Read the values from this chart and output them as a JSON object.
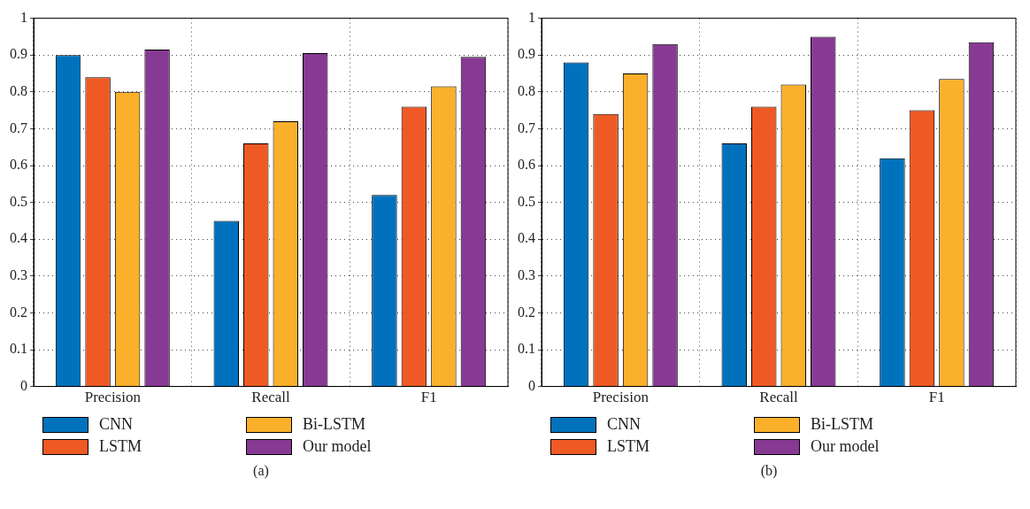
{
  "chart_data": [
    {
      "type": "bar",
      "categories": [
        "Precision",
        "Recall",
        "F1"
      ],
      "series": [
        {
          "name": "CNN",
          "color": "#0072bd",
          "values": [
            0.9,
            0.45,
            0.52
          ]
        },
        {
          "name": "LSTM",
          "color": "#ef5a24",
          "values": [
            0.84,
            0.66,
            0.76
          ]
        },
        {
          "name": "Bi-LSTM",
          "color": "#fbb02b",
          "values": [
            0.8,
            0.72,
            0.815
          ]
        },
        {
          "name": "Our model",
          "color": "#873a93",
          "values": [
            0.915,
            0.905,
            0.895
          ]
        }
      ],
      "ylim": [
        0,
        1
      ],
      "yticks": [
        0,
        0.1,
        0.2,
        0.3,
        0.4,
        0.5,
        0.6,
        0.7,
        0.8,
        0.9,
        1
      ],
      "grid": true,
      "legend": "bottom",
      "annotations": [
        "(a)"
      ]
    },
    {
      "type": "bar",
      "categories": [
        "Precision",
        "Recall",
        "F1"
      ],
      "series": [
        {
          "name": "CNN",
          "color": "#0072bd",
          "values": [
            0.88,
            0.66,
            0.62
          ]
        },
        {
          "name": "LSTM",
          "color": "#ef5a24",
          "values": [
            0.74,
            0.76,
            0.75
          ]
        },
        {
          "name": "Bi-LSTM",
          "color": "#fbb02b",
          "values": [
            0.85,
            0.82,
            0.835
          ]
        },
        {
          "name": "Our model",
          "color": "#873a93",
          "values": [
            0.93,
            0.95,
            0.935
          ]
        }
      ],
      "ylim": [
        0,
        1
      ],
      "yticks": [
        0,
        0.1,
        0.2,
        0.3,
        0.4,
        0.5,
        0.6,
        0.7,
        0.8,
        0.9,
        1
      ],
      "grid": true,
      "legend": "bottom",
      "annotations": [
        "(b)"
      ]
    }
  ]
}
